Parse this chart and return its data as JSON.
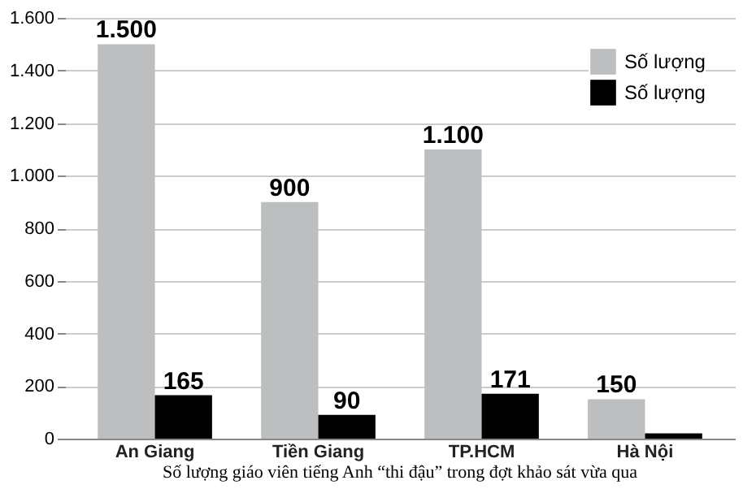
{
  "chart_data": {
    "type": "bar",
    "categories": [
      "An Giang",
      "Tiền Giang",
      "TP.HCM",
      "Hà Nội"
    ],
    "series": [
      {
        "name": "Số lượng",
        "color": "#bdbec0",
        "values": [
          1500,
          900,
          1100,
          150
        ],
        "value_labels": [
          "1.500",
          "900",
          "1.100",
          "150"
        ]
      },
      {
        "name": "Số lượng",
        "color": "#000000",
        "values": [
          165,
          90,
          171,
          20
        ],
        "value_labels": [
          "165",
          "90",
          "171",
          null
        ]
      }
    ],
    "ylim": [
      0,
      1600
    ],
    "yticks": [
      {
        "value": 0,
        "label": "0"
      },
      {
        "value": 200,
        "label": "200"
      },
      {
        "value": 400,
        "label": "400"
      },
      {
        "value": 600,
        "label": "600"
      },
      {
        "value": 800,
        "label": "800"
      },
      {
        "value": 1000,
        "label": "1.000"
      },
      {
        "value": 1200,
        "label": "1.200"
      },
      {
        "value": 1400,
        "label": "1.400"
      },
      {
        "value": 1600,
        "label": "1.600"
      }
    ],
    "grid": "y",
    "legend": "top right",
    "annotations": [
      "Số lượng giáo viên tiếng Anh “thi đậu” trong đợt khảo sát vừa qua"
    ]
  }
}
